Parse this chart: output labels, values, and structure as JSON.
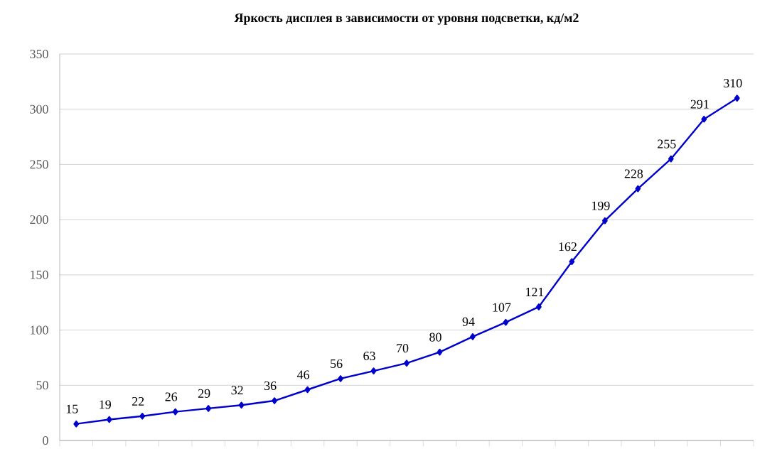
{
  "chart_data": {
    "type": "line",
    "title": "Яркость дисплея в зависимости от уровня подсветки, кд/м2",
    "categories": [
      null,
      null,
      null,
      null,
      null,
      null,
      null,
      null,
      null,
      null,
      null,
      null,
      null,
      null,
      null,
      null,
      null,
      null,
      null,
      null,
      null
    ],
    "series": [
      {
        "color": "#0000cc",
        "values": [
          15,
          19,
          22,
          26,
          29,
          32,
          36,
          46,
          56,
          63,
          70,
          80,
          94,
          107,
          121,
          162,
          199,
          228,
          255,
          291,
          310
        ]
      }
    ],
    "ylim": [
      0,
      350
    ],
    "yticks": [
      0,
      50,
      100,
      150,
      200,
      250,
      300,
      350
    ],
    "grid": "y",
    "marker": "diamond",
    "line_style": "solid",
    "data_labels": true
  }
}
